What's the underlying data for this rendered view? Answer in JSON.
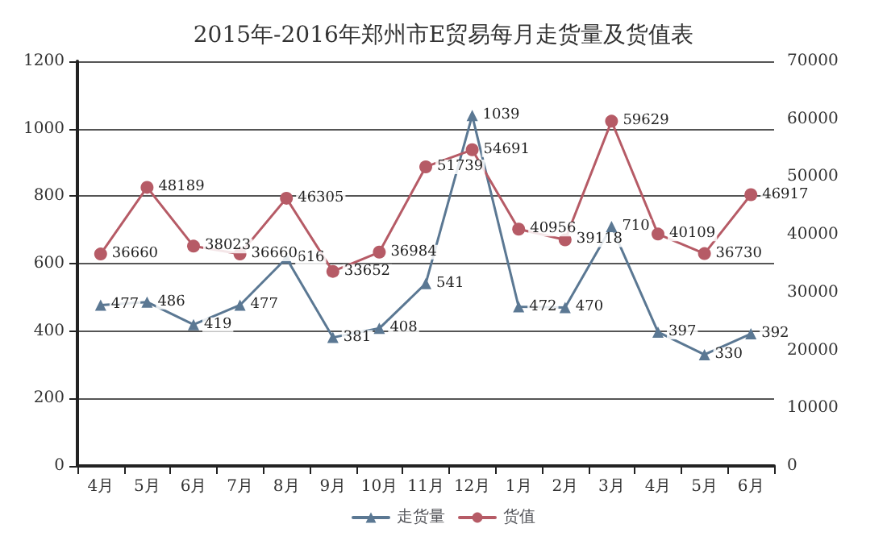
{
  "chart_data": {
    "type": "line",
    "title": "2015年-2016年郑州市E贸易每月走货量及货值表",
    "categories": [
      "4月",
      "5月",
      "6月",
      "7月",
      "8月",
      "9月",
      "10月",
      "11月",
      "12月",
      "1月",
      "2月",
      "3月",
      "4月",
      "5月",
      "6月"
    ],
    "series": [
      {
        "name": "走货量",
        "color": "#5b7893",
        "marker": "triangle",
        "values": [
          477,
          486,
          419,
          477,
          616,
          381,
          408,
          541,
          1039,
          472,
          470,
          710,
          397,
          330,
          392
        ]
      },
      {
        "name": "货值",
        "color": "#b65b66",
        "marker": "circle",
        "axis": "y2",
        "values": [
          36660,
          48189,
          38023,
          36660,
          46305,
          33652,
          36984,
          51739,
          54691,
          40956,
          39118,
          59629,
          40109,
          36730,
          46917
        ]
      }
    ],
    "ylim": [
      0,
      1200
    ],
    "yticks": [
      0,
      200,
      400,
      600,
      800,
      1000,
      1200
    ],
    "y2lim": [
      0,
      70000
    ],
    "y2ticks": [
      0,
      10000,
      20000,
      30000,
      40000,
      50000,
      60000,
      70000
    ],
    "grid": "y",
    "legend": "bottom",
    "data_labels": true,
    "line_style": "solid"
  }
}
